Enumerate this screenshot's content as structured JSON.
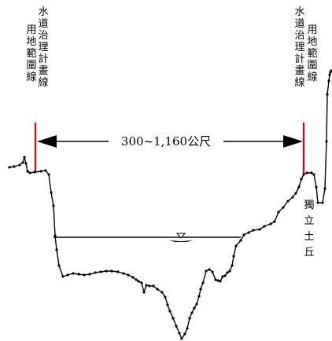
{
  "labels": {
    "left_col1": "用地範圍線",
    "left_col2": "水道治理計畫線",
    "right_col1": "水道治理計畫線",
    "right_col2": "用地範圍線",
    "channel_width": "300~1,160公尺",
    "mound": "獨立土丘"
  },
  "colors": {
    "boundary_line": "#e00000",
    "profile": "#000000",
    "water_level": "#000000",
    "arrow": "#000000"
  },
  "icons": {
    "water_level_symbol": "water-level-triangle-icon"
  }
}
